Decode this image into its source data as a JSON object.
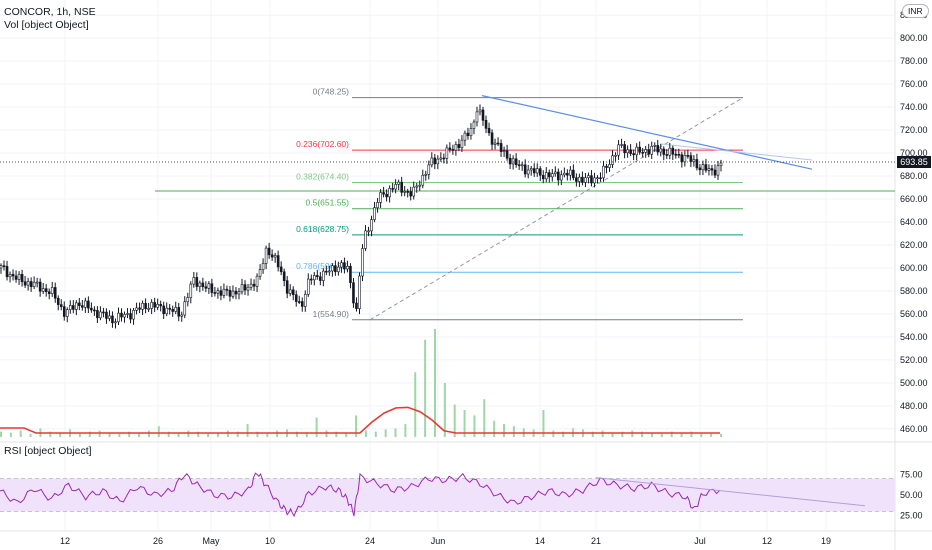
{
  "header": {
    "title": "CONCOR, 1h, NSE",
    "vol_label": "Vol [object Object]",
    "rsi_label": "RSI [object Object]"
  },
  "currency": "INR",
  "last_price": "693.85",
  "colors": {
    "up": "#26a69a",
    "down": "#131722",
    "candle_body": "#131722",
    "volume": "#9fd6a6",
    "volume_ma": "#e53935",
    "rsi": "#9c27b0",
    "rsi_band": "#f1e2fc",
    "trendline": "#5b8ee6",
    "grid": "#f0f3fa"
  },
  "chart_data": [
    {
      "type": "candlestick",
      "panel": "price",
      "title": "CONCOR, 1h, NSE",
      "y_ticks": [
        460,
        480,
        500,
        520,
        540,
        560,
        580,
        600,
        620,
        640,
        660,
        680,
        700,
        720,
        740,
        760,
        780,
        800,
        820
      ],
      "ylim": [
        452,
        828
      ],
      "x_ticks": [
        "12",
        "26",
        "May",
        "10",
        "24",
        "Jun",
        "14",
        "21",
        "Jul",
        "12",
        "19"
      ],
      "close_path_points": [
        [
          0,
          600
        ],
        [
          0.02,
          590
        ],
        [
          0.04,
          585
        ],
        [
          0.06,
          578
        ],
        [
          0.075,
          560
        ],
        [
          0.09,
          570
        ],
        [
          0.11,
          562
        ],
        [
          0.13,
          555
        ],
        [
          0.15,
          560
        ],
        [
          0.17,
          568
        ],
        [
          0.19,
          565
        ],
        [
          0.21,
          560
        ],
        [
          0.225,
          590
        ],
        [
          0.24,
          582
        ],
        [
          0.26,
          578
        ],
        [
          0.28,
          580
        ],
        [
          0.3,
          590
        ],
        [
          0.31,
          618
        ],
        [
          0.325,
          600
        ],
        [
          0.335,
          580
        ],
        [
          0.35,
          567
        ],
        [
          0.36,
          590
        ],
        [
          0.38,
          596
        ],
        [
          0.395,
          603
        ],
        [
          0.405,
          598
        ],
        [
          0.41,
          578
        ],
        [
          0.415,
          562
        ],
        [
          0.42,
          610
        ],
        [
          0.425,
          628
        ],
        [
          0.44,
          660
        ],
        [
          0.46,
          672
        ],
        [
          0.48,
          664
        ],
        [
          0.5,
          690
        ],
        [
          0.52,
          700
        ],
        [
          0.54,
          712
        ],
        [
          0.55,
          722
        ],
        [
          0.555,
          740
        ],
        [
          0.57,
          715
        ],
        [
          0.58,
          705
        ],
        [
          0.6,
          690
        ],
        [
          0.62,
          684
        ],
        [
          0.64,
          680
        ],
        [
          0.66,
          682
        ],
        [
          0.68,
          676
        ],
        [
          0.7,
          680
        ],
        [
          0.72,
          705
        ],
        [
          0.74,
          700
        ],
        [
          0.76,
          704
        ],
        [
          0.78,
          700
        ],
        [
          0.8,
          696
        ],
        [
          0.82,
          686
        ],
        [
          0.83,
          684
        ],
        [
          0.84,
          690
        ]
      ],
      "fib_levels": [
        {
          "label": "0(748.25)",
          "value": 748.25,
          "color": "#787b86"
        },
        {
          "label": "0.236(702.60)",
          "value": 702.6,
          "color": "#f23645"
        },
        {
          "label": "0.382(674.40)",
          "value": 674.4,
          "color": "#81c784"
        },
        {
          "label": "0.5(651.55)",
          "value": 651.55,
          "color": "#4caf50"
        },
        {
          "label": "0.618(628.75)",
          "value": 628.75,
          "color": "#089981"
        },
        {
          "label": "0.786(596.30)",
          "value": 596.3,
          "color": "#64b5f6"
        },
        {
          "label": "1(554.90)",
          "value": 554.9,
          "color": "#787b86"
        }
      ],
      "extra_level": 667,
      "volume_heights": [
        0.05,
        0.04,
        0.06,
        0.03,
        0.08,
        0.05,
        0.04,
        0.07,
        0.03,
        0.05,
        0.06,
        0.04,
        0.03,
        0.05,
        0.04,
        0.06,
        0.1,
        0.05,
        0.04,
        0.06,
        0.05,
        0.03,
        0.04,
        0.06,
        0.05,
        0.12,
        0.05,
        0.04,
        0.06,
        0.07,
        0.05,
        0.04,
        0.18,
        0.06,
        0.05,
        0.04,
        0.2,
        0.06,
        0.05,
        0.07,
        0.08,
        0.12,
        0.6,
        0.9,
        1.0,
        0.5,
        0.3,
        0.25,
        0.2,
        0.35,
        0.15,
        0.12,
        0.1,
        0.08,
        0.07,
        0.25,
        0.06,
        0.05,
        0.08,
        0.07,
        0.05,
        0.06,
        0.04,
        0.05,
        0.06,
        0.05,
        0.04,
        0.03,
        0.05,
        0.04,
        0.05,
        0.03,
        0.04,
        0.03
      ]
    },
    {
      "type": "line",
      "panel": "rsi",
      "title": "RSI [object Object]",
      "y_ticks": [
        25,
        50,
        75
      ],
      "ylim": [
        10,
        90
      ],
      "upper_band": 70,
      "lower_band": 30,
      "points": [
        [
          0,
          55
        ],
        [
          0.02,
          40
        ],
        [
          0.04,
          58
        ],
        [
          0.06,
          45
        ],
        [
          0.08,
          62
        ],
        [
          0.1,
          48
        ],
        [
          0.12,
          55
        ],
        [
          0.14,
          42
        ],
        [
          0.16,
          60
        ],
        [
          0.18,
          50
        ],
        [
          0.2,
          55
        ],
        [
          0.215,
          75
        ],
        [
          0.23,
          62
        ],
        [
          0.25,
          50
        ],
        [
          0.27,
          48
        ],
        [
          0.29,
          56
        ],
        [
          0.3,
          78
        ],
        [
          0.31,
          62
        ],
        [
          0.325,
          40
        ],
        [
          0.335,
          30
        ],
        [
          0.345,
          28
        ],
        [
          0.36,
          52
        ],
        [
          0.38,
          60
        ],
        [
          0.395,
          56
        ],
        [
          0.405,
          45
        ],
        [
          0.413,
          28
        ],
        [
          0.42,
          72
        ],
        [
          0.44,
          64
        ],
        [
          0.46,
          56
        ],
        [
          0.48,
          60
        ],
        [
          0.5,
          70
        ],
        [
          0.52,
          68
        ],
        [
          0.54,
          72
        ],
        [
          0.56,
          64
        ],
        [
          0.58,
          50
        ],
        [
          0.6,
          40
        ],
        [
          0.62,
          48
        ],
        [
          0.64,
          55
        ],
        [
          0.66,
          50
        ],
        [
          0.68,
          56
        ],
        [
          0.7,
          68
        ],
        [
          0.72,
          62
        ],
        [
          0.74,
          58
        ],
        [
          0.76,
          62
        ],
        [
          0.78,
          52
        ],
        [
          0.8,
          48
        ],
        [
          0.81,
          32
        ],
        [
          0.82,
          52
        ],
        [
          0.84,
          56
        ]
      ]
    }
  ]
}
